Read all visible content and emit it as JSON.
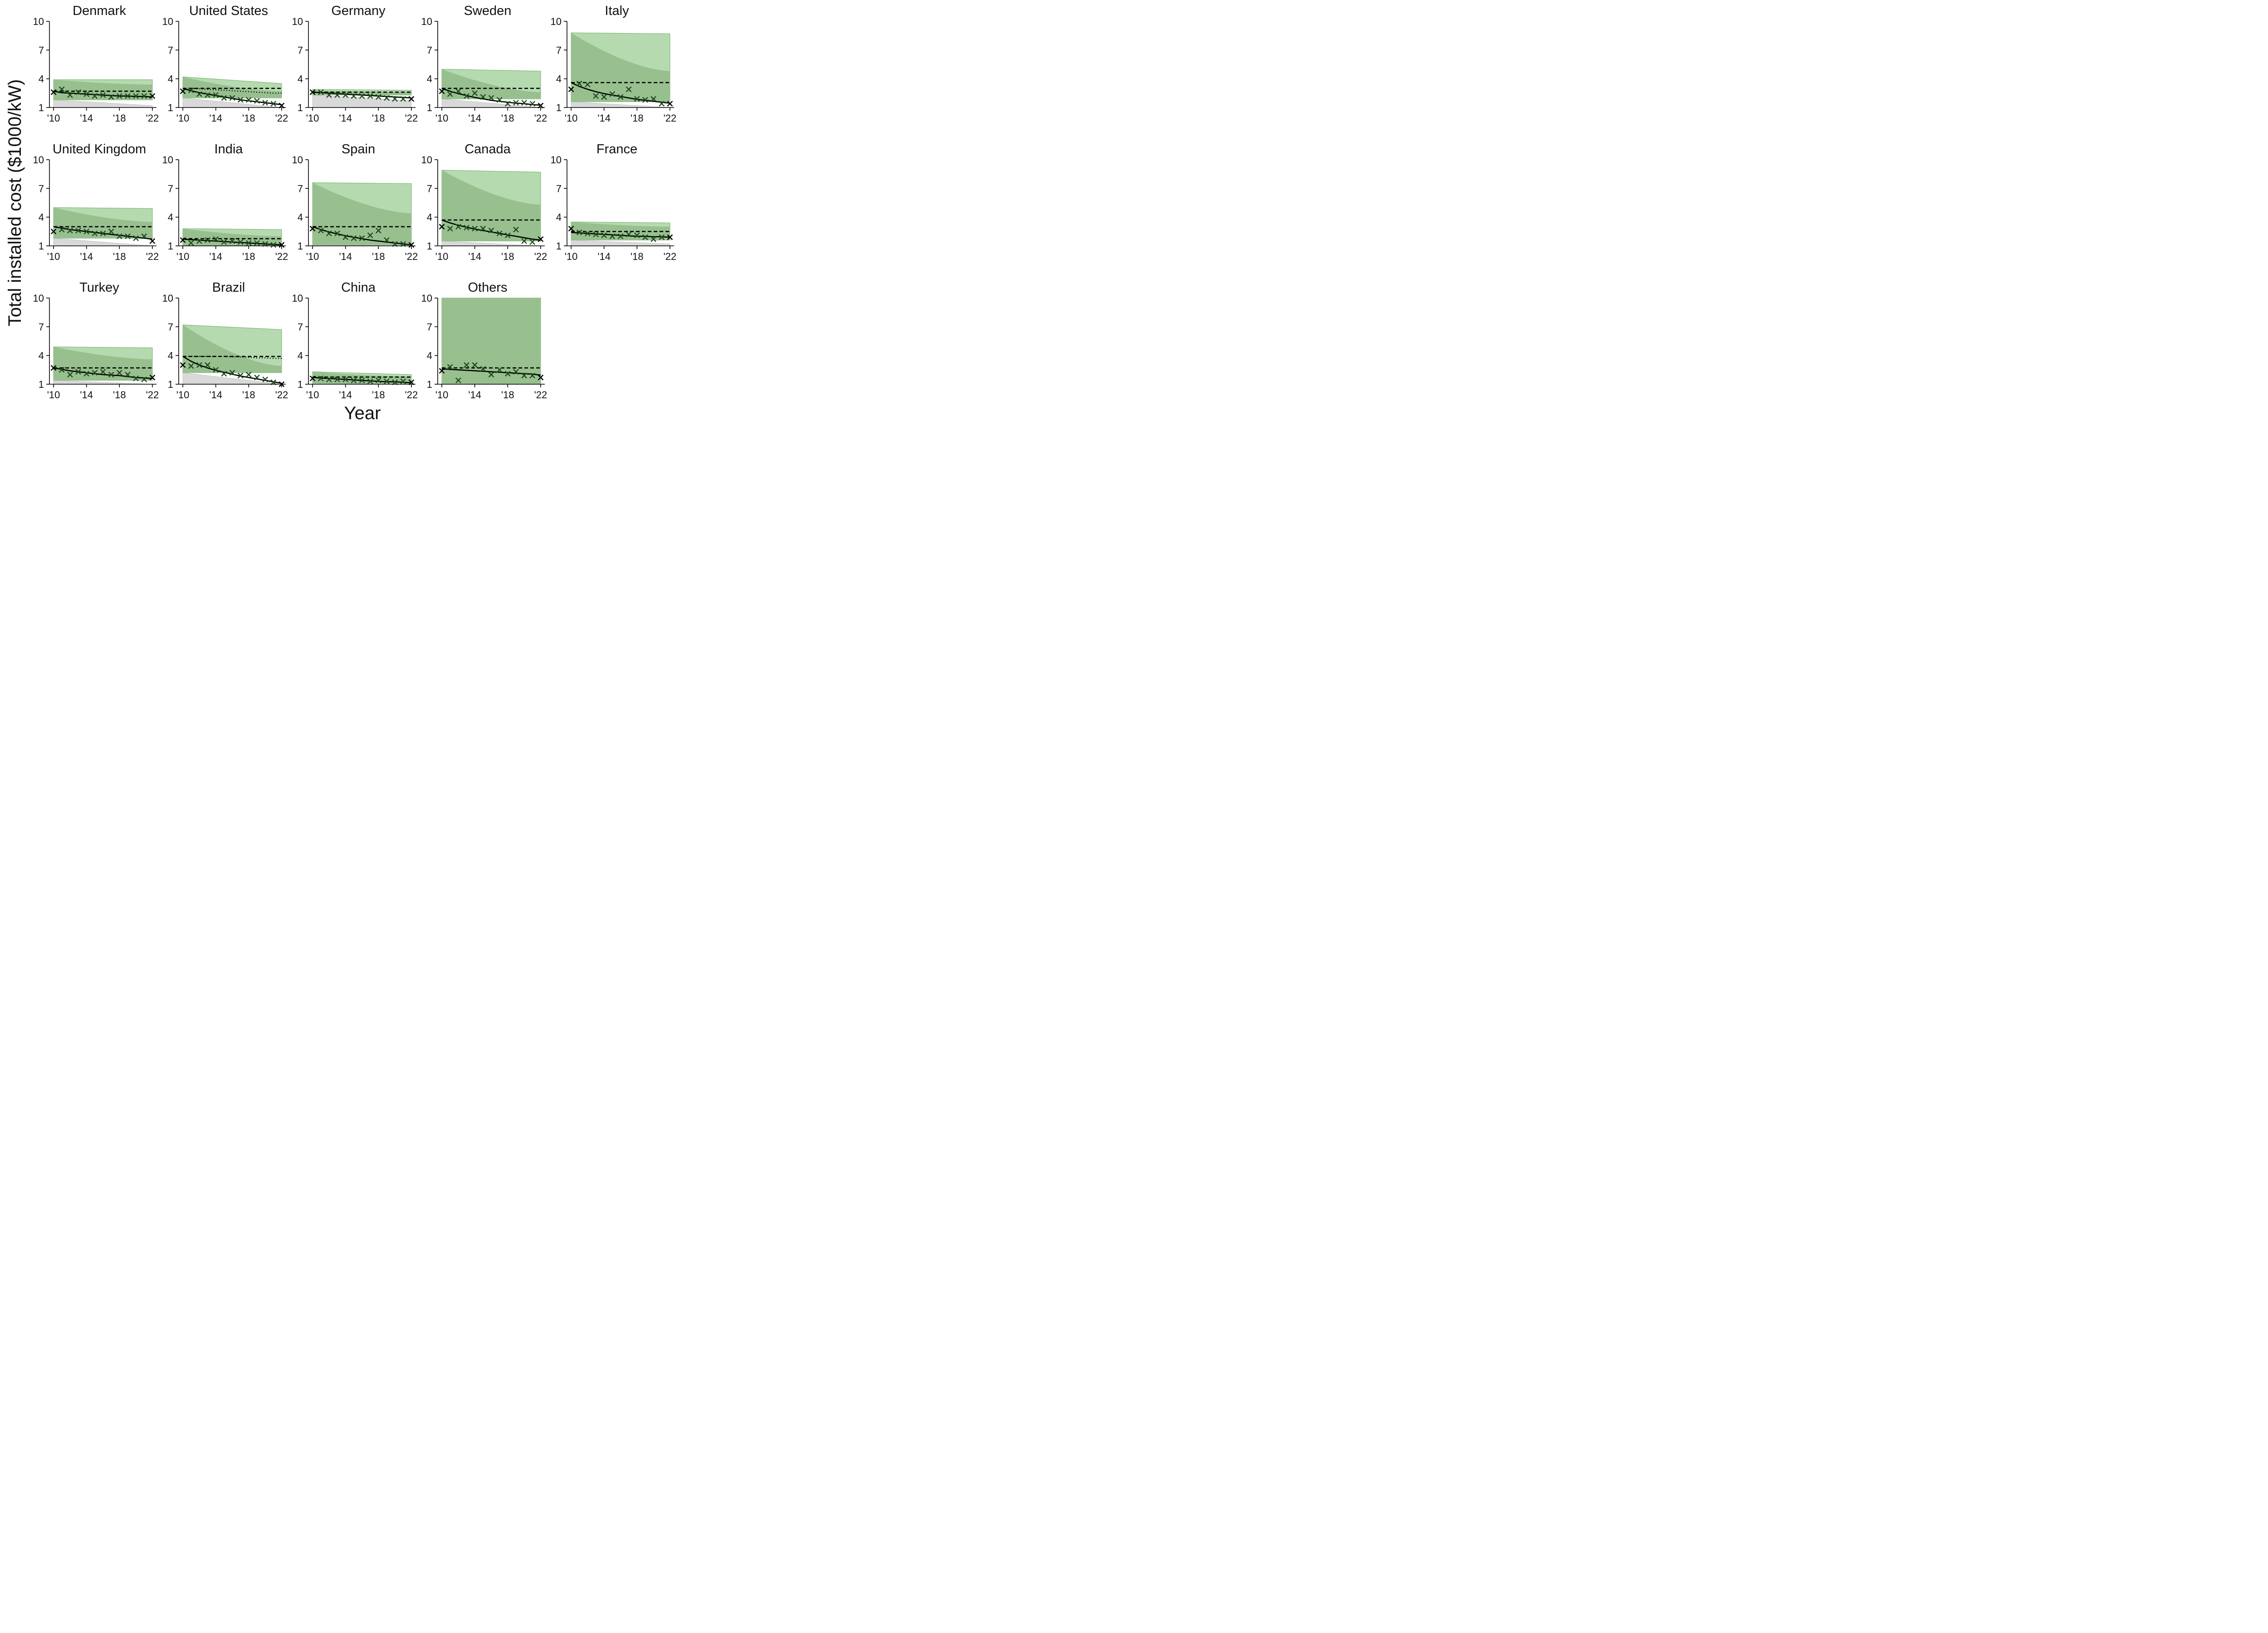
{
  "figure": {
    "ylabel": "Total installed cost ($1000/kW)",
    "xlabel": "Year"
  },
  "colors": {
    "outer_band": "#b2d8ac",
    "inner_band": "#98c08f",
    "gray_band": "#d9d9d9",
    "marker": "#1e4a1e",
    "line": "#000000"
  },
  "chart_data": {
    "type": "line",
    "axes": {
      "x_range": [
        2009.5,
        2022.5
      ],
      "y_range": [
        1,
        10
      ],
      "x_ticks": [
        2010,
        2014,
        2018,
        2022
      ],
      "x_tick_labels": [
        "'10",
        "'14",
        "'18",
        "'22"
      ],
      "y_ticks": [
        1,
        4,
        7,
        10
      ],
      "y_tick_labels": [
        "1",
        "4",
        "7",
        "10"
      ],
      "grid": false
    },
    "years": [
      2010,
      2011,
      2012,
      2013,
      2014,
      2015,
      2016,
      2017,
      2018,
      2019,
      2020,
      2021,
      2022
    ],
    "panels": [
      {
        "title": "Denmark",
        "observed": [
          2.6,
          2.9,
          2.3,
          2.6,
          2.4,
          2.2,
          2.3,
          2.1,
          2.2,
          2.2,
          2.2,
          2.2,
          2.2
        ],
        "model": [
          2.7,
          2.55,
          2.5,
          2.45,
          2.4,
          2.35,
          2.3,
          2.25,
          2.2,
          2.2,
          2.15,
          2.15,
          2.1
        ],
        "reference": [
          2.7,
          2.7,
          2.7,
          2.7,
          2.7,
          2.7,
          2.7,
          2.7,
          2.7,
          2.7,
          2.7,
          2.7,
          2.7
        ],
        "band_outer": [
          1.8,
          3.9
        ],
        "band_inner": [
          1.8,
          3.9,
          3.4
        ],
        "gray": [
          1.8,
          1.2
        ]
      },
      {
        "title": "United States",
        "observed": [
          2.7,
          2.8,
          2.4,
          2.3,
          2.3,
          2.0,
          2.0,
          1.8,
          1.8,
          1.7,
          1.5,
          1.4,
          1.2
        ],
        "model": [
          3.0,
          2.75,
          2.55,
          2.4,
          2.25,
          2.1,
          1.95,
          1.8,
          1.7,
          1.6,
          1.5,
          1.4,
          1.3
        ],
        "reference": [
          3.0,
          3.0,
          3.0,
          3.0,
          3.0,
          3.0,
          3.0,
          3.0,
          3.0,
          3.0,
          3.0,
          3.0,
          3.0
        ],
        "reference_dotted": [
          3.0,
          3.0,
          2.95,
          2.9,
          2.85,
          2.8,
          2.75,
          2.7,
          2.65,
          2.6,
          2.55,
          2.5,
          2.5
        ],
        "band_outer": [
          2.0,
          4.2,
          3.5
        ],
        "band_inner": [
          2.0,
          4.2,
          2.7
        ],
        "gray": [
          2.0,
          1.0
        ]
      },
      {
        "title": "Germany",
        "observed": [
          2.6,
          2.6,
          2.3,
          2.3,
          2.3,
          2.2,
          2.2,
          2.2,
          2.1,
          2.0,
          1.9,
          1.9,
          1.9
        ],
        "model": [
          2.6,
          2.55,
          2.5,
          2.45,
          2.4,
          2.35,
          2.3,
          2.25,
          2.2,
          2.15,
          2.1,
          2.05,
          2.0
        ],
        "reference": [
          2.6,
          2.6,
          2.6,
          2.6,
          2.6,
          2.6,
          2.6,
          2.6,
          2.6,
          2.6,
          2.6,
          2.6,
          2.6
        ],
        "band_outer": [
          2.3,
          2.9,
          2.8
        ],
        "band_inner": [
          2.3,
          2.8,
          2.6
        ],
        "gray": [
          2.3,
          1.7
        ]
      },
      {
        "title": "Sweden",
        "observed": [
          2.7,
          2.4,
          2.7,
          2.2,
          2.5,
          2.1,
          2.0,
          1.8,
          1.4,
          1.5,
          1.5,
          1.4,
          1.2
        ],
        "model": [
          3.0,
          2.7,
          2.45,
          2.25,
          2.05,
          1.9,
          1.75,
          1.65,
          1.55,
          1.45,
          1.4,
          1.3,
          1.25
        ],
        "reference": [
          3.0,
          3.0,
          3.0,
          3.0,
          3.0,
          3.0,
          3.0,
          3.0,
          3.0,
          3.0,
          3.0,
          3.0,
          3.0
        ],
        "band_outer": [
          1.9,
          5.0,
          4.8
        ],
        "band_inner": [
          1.9,
          5.0,
          2.6
        ],
        "gray": [
          1.9,
          1.0
        ]
      },
      {
        "title": "Italy",
        "observed": [
          2.9,
          3.5,
          3.4,
          2.2,
          2.1,
          2.4,
          2.1,
          2.9,
          1.9,
          1.8,
          1.9,
          1.4,
          1.4
        ],
        "model": [
          3.6,
          3.2,
          2.9,
          2.65,
          2.45,
          2.3,
          2.15,
          2.0,
          1.85,
          1.75,
          1.65,
          1.55,
          1.45
        ],
        "reference": [
          3.6,
          3.6,
          3.6,
          3.6,
          3.6,
          3.6,
          3.6,
          3.6,
          3.6,
          3.6,
          3.6,
          3.6,
          3.6
        ],
        "band_outer": [
          1.6,
          8.8,
          8.7
        ],
        "band_inner": [
          1.6,
          8.8,
          4.8
        ],
        "gray": [
          1.6,
          1.0
        ]
      },
      {
        "title": "United Kingdom",
        "observed": [
          2.5,
          2.7,
          2.6,
          2.6,
          2.5,
          2.3,
          2.3,
          2.5,
          2.0,
          2.0,
          1.8,
          2.0,
          1.5
        ],
        "model": [
          3.0,
          2.85,
          2.7,
          2.6,
          2.5,
          2.4,
          2.3,
          2.2,
          2.1,
          2.0,
          1.9,
          1.8,
          1.7
        ],
        "reference": [
          3.0,
          3.0,
          3.0,
          3.0,
          3.0,
          3.0,
          3.0,
          3.0,
          3.0,
          3.0,
          3.0,
          3.0,
          3.0
        ],
        "band_outer": [
          1.8,
          5.0,
          4.9
        ],
        "band_inner": [
          1.8,
          5.0,
          3.5
        ],
        "gray": [
          1.8,
          1.0
        ]
      },
      {
        "title": "India",
        "observed": [
          1.6,
          1.3,
          1.5,
          1.6,
          1.7,
          1.4,
          1.5,
          1.4,
          1.3,
          1.3,
          1.2,
          1.1,
          1.1
        ],
        "model": [
          1.7,
          1.65,
          1.6,
          1.55,
          1.5,
          1.45,
          1.4,
          1.35,
          1.3,
          1.25,
          1.2,
          1.15,
          1.1
        ],
        "reference": [
          1.75,
          1.75,
          1.75,
          1.75,
          1.75,
          1.75,
          1.75,
          1.75,
          1.75,
          1.75,
          1.75,
          1.75,
          1.75
        ],
        "band_outer": [
          1.0,
          2.8,
          2.7
        ],
        "band_inner": [
          1.0,
          2.8,
          2.0
        ],
        "gray": [
          2.0,
          1.0
        ]
      },
      {
        "title": "Spain",
        "observed": [
          2.8,
          2.6,
          2.3,
          2.3,
          1.9,
          1.8,
          1.8,
          2.1,
          2.6,
          1.6,
          1.2,
          1.2,
          1.1
        ],
        "model": [
          3.0,
          2.7,
          2.45,
          2.25,
          2.05,
          1.9,
          1.75,
          1.6,
          1.5,
          1.4,
          1.3,
          1.2,
          1.1
        ],
        "reference": [
          3.0,
          3.0,
          3.0,
          3.0,
          3.0,
          3.0,
          3.0,
          3.0,
          3.0,
          3.0,
          3.0,
          3.0,
          3.0
        ],
        "band_outer": [
          1.1,
          7.6,
          7.5
        ],
        "band_inner": [
          1.1,
          7.6,
          4.4
        ],
        "gray": [
          1.1,
          1.0
        ]
      },
      {
        "title": "Canada",
        "observed": [
          3.0,
          2.8,
          3.0,
          2.9,
          2.8,
          2.8,
          2.6,
          2.3,
          2.1,
          2.7,
          1.5,
          1.4,
          1.7
        ],
        "model": [
          3.7,
          3.4,
          3.15,
          2.95,
          2.75,
          2.6,
          2.45,
          2.3,
          2.15,
          2.0,
          1.85,
          1.7,
          1.6
        ],
        "reference": [
          3.7,
          3.7,
          3.7,
          3.7,
          3.7,
          3.7,
          3.7,
          3.7,
          3.7,
          3.7,
          3.7,
          3.7,
          3.7
        ],
        "band_outer": [
          1.5,
          8.9,
          8.7
        ],
        "band_inner": [
          1.5,
          8.9,
          5.3
        ],
        "gray": [
          1.5,
          1.0
        ]
      },
      {
        "title": "France",
        "observed": [
          2.8,
          2.4,
          2.3,
          2.2,
          2.1,
          2.0,
          2.0,
          2.2,
          2.1,
          1.9,
          1.7,
          1.9,
          1.9
        ],
        "model": [
          2.4,
          2.35,
          2.3,
          2.25,
          2.2,
          2.15,
          2.1,
          2.05,
          2.0,
          2.0,
          1.95,
          1.95,
          1.9
        ],
        "reference": [
          2.5,
          2.5,
          2.5,
          2.5,
          2.5,
          2.5,
          2.5,
          2.5,
          2.5,
          2.5,
          2.5,
          2.5,
          2.5
        ],
        "band_outer": [
          1.6,
          3.5,
          3.4
        ],
        "band_inner": [
          1.6,
          3.5,
          3.0
        ],
        "gray": [
          1.6,
          1.2
        ]
      },
      {
        "title": "Turkey",
        "observed": [
          2.7,
          2.5,
          2.0,
          2.3,
          2.1,
          2.2,
          2.3,
          2.0,
          2.2,
          2.0,
          1.6,
          1.5,
          1.7
        ],
        "model": [
          2.7,
          2.55,
          2.4,
          2.3,
          2.2,
          2.1,
          2.0,
          1.95,
          1.9,
          1.8,
          1.7,
          1.65,
          1.6
        ],
        "reference": [
          2.7,
          2.7,
          2.7,
          2.7,
          2.7,
          2.7,
          2.7,
          2.7,
          2.7,
          2.7,
          2.7,
          2.7,
          2.7
        ],
        "band_outer": [
          1.4,
          4.9,
          4.8
        ],
        "band_inner": [
          1.4,
          4.9,
          3.6
        ],
        "gray": [
          1.4,
          1.0
        ]
      },
      {
        "title": "Brazil",
        "observed": [
          3.0,
          2.9,
          3.0,
          3.0,
          2.5,
          2.1,
          2.2,
          1.9,
          2.0,
          1.7,
          1.5,
          1.2,
          1.0
        ],
        "model": [
          3.9,
          3.4,
          3.0,
          2.7,
          2.45,
          2.25,
          2.05,
          1.85,
          1.7,
          1.55,
          1.4,
          1.25,
          1.1
        ],
        "reference": [
          3.9,
          3.9,
          3.9,
          3.9,
          3.9,
          3.9,
          3.9,
          3.9,
          3.9,
          3.9,
          3.9,
          3.9,
          3.9
        ],
        "reference_dotted": [
          3.9,
          3.9,
          3.9,
          3.9,
          3.9,
          3.9,
          3.85,
          3.85,
          3.8,
          3.75,
          3.75,
          3.7,
          3.7
        ],
        "band_outer": [
          2.2,
          7.2,
          6.7
        ],
        "band_inner": [
          2.2,
          7.2,
          2.9
        ],
        "gray": [
          2.2,
          1.0
        ]
      },
      {
        "title": "China",
        "observed": [
          1.6,
          1.6,
          1.5,
          1.5,
          1.5,
          1.4,
          1.4,
          1.3,
          1.4,
          1.3,
          1.2,
          1.3,
          1.2
        ],
        "model": [
          1.7,
          1.65,
          1.6,
          1.55,
          1.5,
          1.45,
          1.4,
          1.35,
          1.3,
          1.25,
          1.25,
          1.2,
          1.15
        ],
        "reference": [
          1.75,
          1.75,
          1.75,
          1.75,
          1.75,
          1.75,
          1.75,
          1.75,
          1.75,
          1.75,
          1.75,
          1.75,
          1.75
        ],
        "band_outer": [
          1.1,
          2.3,
          2.0
        ],
        "band_inner": [
          1.1,
          2.3,
          1.8
        ],
        "gray": [
          1.1,
          1.0
        ]
      },
      {
        "title": "Others",
        "observed": [
          2.4,
          2.8,
          1.4,
          3.0,
          3.0,
          2.6,
          2.0,
          2.5,
          2.1,
          2.3,
          1.9,
          1.9,
          1.7
        ],
        "model": [
          2.6,
          2.55,
          2.5,
          2.45,
          2.4,
          2.35,
          2.3,
          2.25,
          2.2,
          2.15,
          2.1,
          2.05,
          1.95
        ],
        "reference": [
          2.7,
          2.7,
          2.7,
          2.7,
          2.7,
          2.7,
          2.7,
          2.7,
          2.7,
          2.7,
          2.7,
          2.7,
          2.7
        ],
        "band_outer": [
          1.0,
          10.0,
          10.0
        ],
        "band_inner": [
          1.0,
          10.0,
          10.0
        ],
        "gray": [
          1.0,
          1.0
        ]
      }
    ]
  }
}
